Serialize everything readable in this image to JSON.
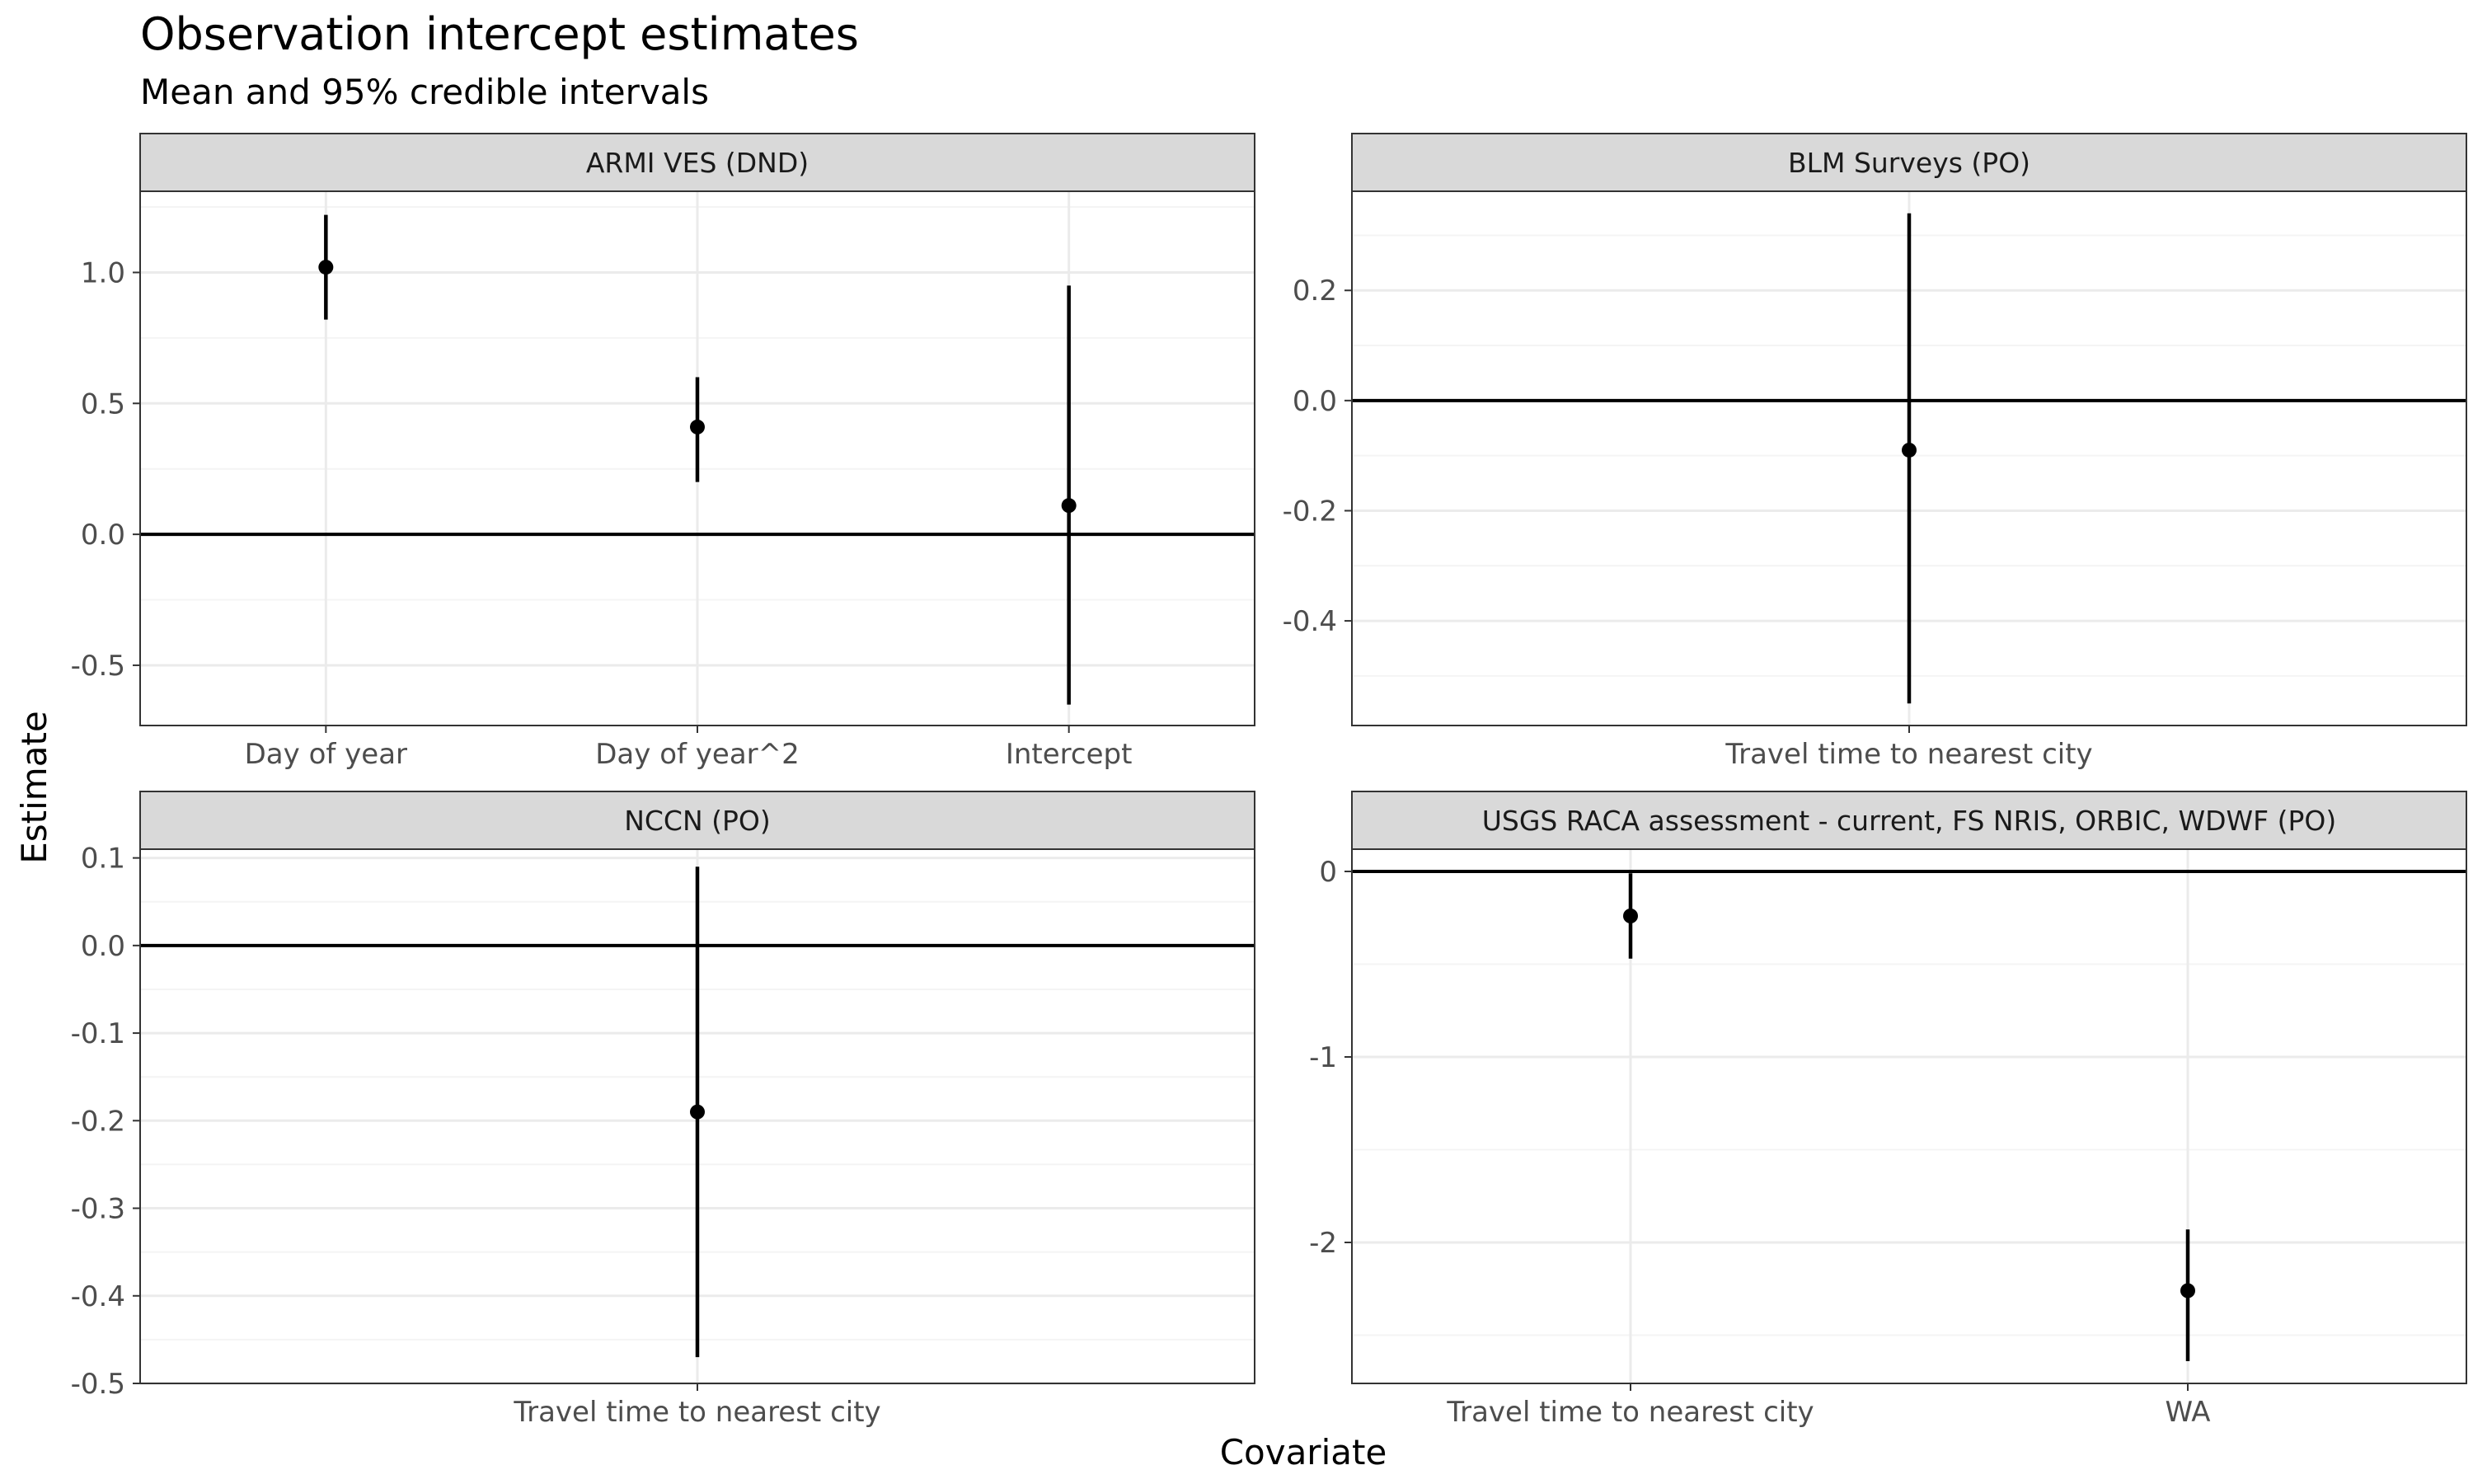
{
  "chart_data": {
    "type": "scatter",
    "title": "Observation intercept estimates",
    "subtitle": "Mean and 95% credible intervals",
    "xlabel": "Covariate",
    "ylabel": "Estimate",
    "grid": true,
    "reference_line": 0,
    "panels": [
      {
        "strip": "ARMI VES (DND)",
        "categories": [
          "Day of year",
          "Day of year^2",
          "Intercept"
        ],
        "points": [
          {
            "x": "Day of year",
            "mean": 1.02,
            "lower": 0.82,
            "upper": 1.22
          },
          {
            "x": "Day of year^2",
            "mean": 0.41,
            "lower": 0.2,
            "upper": 0.6
          },
          {
            "x": "Intercept",
            "mean": 0.11,
            "lower": -0.65,
            "upper": 0.95
          }
        ],
        "ylim": [
          -0.73,
          1.31
        ],
        "yticks": [
          -0.5,
          0.0,
          0.5,
          1.0
        ],
        "ytick_labels": [
          "-0.5",
          "0.0",
          "0.5",
          "1.0"
        ],
        "yminor": [
          -0.25,
          0.25,
          0.75,
          1.25
        ]
      },
      {
        "strip": "BLM Surveys (PO)",
        "categories": [
          "Travel time to nearest city"
        ],
        "points": [
          {
            "x": "Travel time to nearest city",
            "mean": -0.09,
            "lower": -0.55,
            "upper": 0.34
          }
        ],
        "ylim": [
          -0.59,
          0.38
        ],
        "yticks": [
          -0.4,
          -0.2,
          0.0,
          0.2
        ],
        "ytick_labels": [
          "-0.4",
          "-0.2",
          "0.0",
          "0.2"
        ],
        "yminor": [
          -0.5,
          -0.3,
          -0.1,
          0.1,
          0.3
        ]
      },
      {
        "strip": "NCCN (PO)",
        "categories": [
          "Travel time to nearest city"
        ],
        "points": [
          {
            "x": "Travel time to nearest city",
            "mean": -0.19,
            "lower": -0.47,
            "upper": 0.09
          }
        ],
        "ylim": [
          -0.5,
          0.11
        ],
        "yticks": [
          -0.5,
          -0.4,
          -0.3,
          -0.2,
          -0.1,
          0.0,
          0.1
        ],
        "ytick_labels": [
          "-0.5",
          "-0.4",
          "-0.3",
          "-0.2",
          "-0.1",
          "0.0",
          "0.1"
        ],
        "yminor": [
          -0.45,
          -0.35,
          -0.25,
          -0.15,
          -0.05,
          0.05
        ]
      },
      {
        "strip": "USGS RACA assessment - current, FS NRIS, ORBIC, WDWF (PO)",
        "categories": [
          "Travel time to nearest city",
          "WA"
        ],
        "points": [
          {
            "x": "Travel time to nearest city",
            "mean": -0.24,
            "lower": -0.47,
            "upper": -0.01
          },
          {
            "x": "WA",
            "mean": -2.26,
            "lower": -2.64,
            "upper": -1.93
          }
        ],
        "ylim": [
          -2.76,
          0.12
        ],
        "yticks": [
          -2,
          -1,
          0
        ],
        "ytick_labels": [
          "-2",
          "-1",
          "0"
        ],
        "yminor": [
          -2.5,
          -1.5,
          -0.5
        ]
      }
    ]
  },
  "colors": {
    "point": "#000000",
    "errorbar": "#000000",
    "zero_line": "#000000",
    "grid_major": "#ebebeb",
    "grid_minor": "#f4f4f4",
    "strip_fill": "#d9d9d9",
    "strip_border": "#333333",
    "panel_border": "#333333",
    "tick_text": "#4d4d4d"
  }
}
